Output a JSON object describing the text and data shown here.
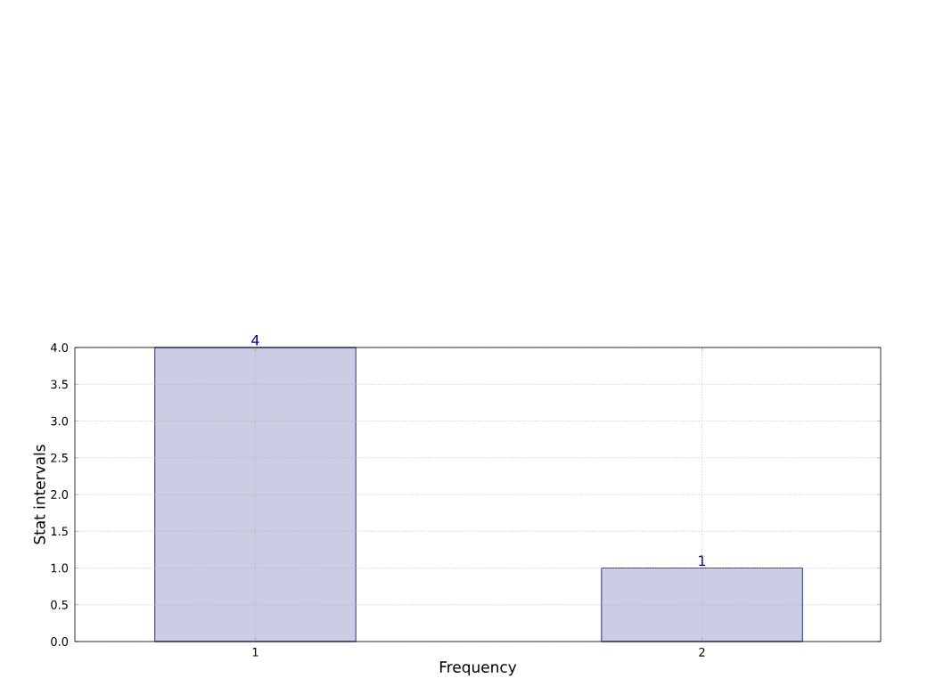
{
  "chart_data": {
    "type": "bar",
    "xlabel": "Frequency",
    "ylabel": "Stat intervals",
    "categories": [
      "1",
      "2"
    ],
    "values": [
      4,
      1
    ],
    "color": "#ccccE5",
    "ylim": [
      0,
      4
    ],
    "yticks": [
      {
        "value": 0,
        "label": "0.0"
      },
      {
        "value": 0.5,
        "label": "0.5"
      },
      {
        "value": 1,
        "label": "1.0"
      },
      {
        "value": 1.5,
        "label": "1.5"
      },
      {
        "value": 2,
        "label": "2.0"
      },
      {
        "value": 2.5,
        "label": "2.5"
      },
      {
        "value": 3,
        "label": "3.0"
      },
      {
        "value": 3.5,
        "label": "3.5"
      },
      {
        "value": 4,
        "label": "4.0"
      }
    ],
    "grid": true,
    "data_labels": true
  }
}
